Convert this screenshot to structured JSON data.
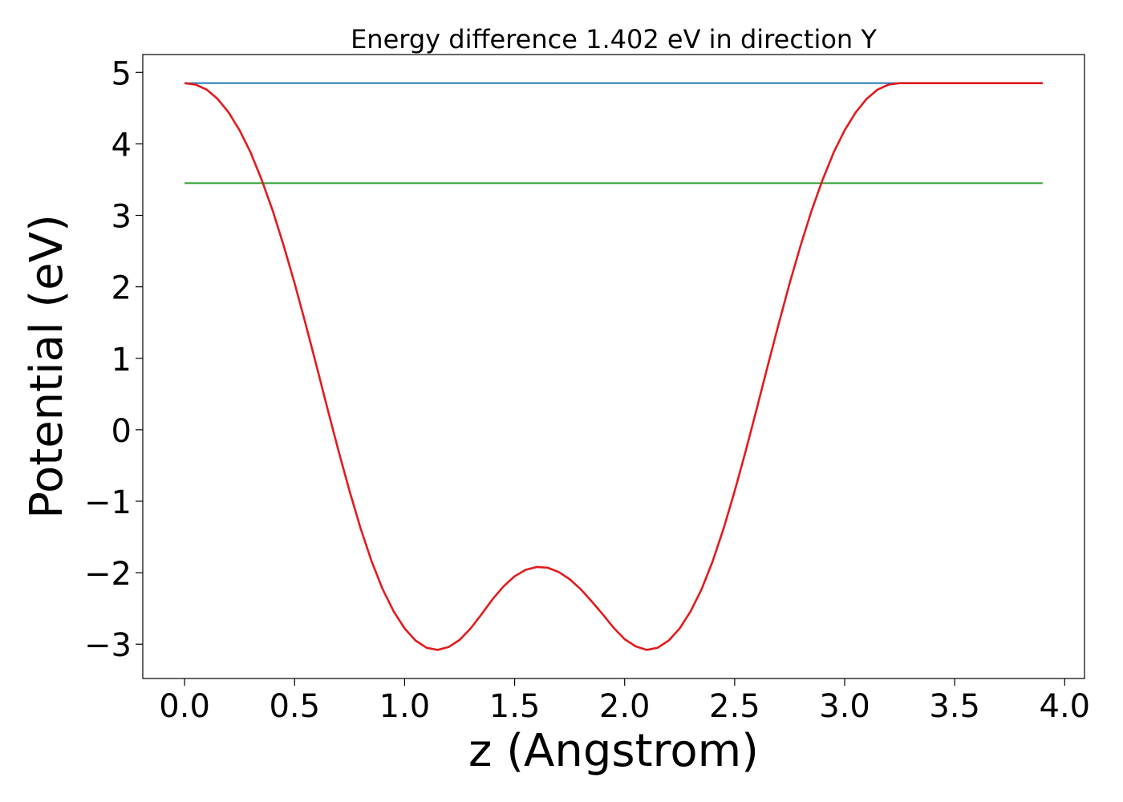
{
  "chart_data": {
    "type": "line",
    "title": "Energy difference 1.402 eV in direction Y",
    "xlabel": "z (Angstrom)",
    "ylabel": "Potential (eV)",
    "xlim": [
      -0.19,
      4.09
    ],
    "ylim": [
      -3.48,
      5.25
    ],
    "xticks": [
      0.0,
      0.5,
      1.0,
      1.5,
      2.0,
      2.5,
      3.0,
      3.5,
      4.0
    ],
    "xtick_labels": [
      "0.0",
      "0.5",
      "1.0",
      "1.5",
      "2.0",
      "2.5",
      "3.0",
      "3.5",
      "4.0"
    ],
    "yticks": [
      -3,
      -2,
      -1,
      0,
      1,
      2,
      3,
      4,
      5
    ],
    "ytick_labels": [
      "−3",
      "−2",
      "−1",
      "0",
      "1",
      "2",
      "3",
      "4",
      "5"
    ],
    "grid": false,
    "series": [
      {
        "color": "#e31a1c",
        "x": [
          0.0,
          0.05,
          0.1,
          0.15,
          0.2,
          0.25,
          0.3,
          0.35,
          0.4,
          0.45,
          0.5,
          0.55,
          0.6,
          0.65,
          0.7,
          0.75,
          0.8,
          0.85,
          0.9,
          0.95,
          1.0,
          1.05,
          1.1,
          1.15,
          1.2,
          1.25,
          1.3,
          1.35,
          1.4,
          1.45,
          1.5,
          1.55,
          1.6,
          1.65,
          1.7,
          1.75,
          1.8,
          1.85,
          1.9,
          1.95,
          2.0,
          2.05,
          2.1,
          2.15,
          2.2,
          2.25,
          2.3,
          2.35,
          2.4,
          2.45,
          2.5,
          2.55,
          2.6,
          2.65,
          2.7,
          2.75,
          2.8,
          2.85,
          2.9,
          2.95,
          3.0,
          3.05,
          3.1,
          3.15,
          3.2,
          3.25,
          3.3,
          3.35,
          3.4,
          3.45,
          3.5,
          3.55,
          3.6,
          3.65,
          3.7,
          3.75,
          3.8,
          3.85,
          3.9
        ],
        "y": [
          4.85,
          4.83,
          4.76,
          4.63,
          4.44,
          4.19,
          3.88,
          3.5,
          3.07,
          2.58,
          2.05,
          1.48,
          0.89,
          0.29,
          -0.3,
          -0.86,
          -1.38,
          -1.84,
          -2.23,
          -2.54,
          -2.78,
          -2.95,
          -3.05,
          -3.08,
          -3.04,
          -2.94,
          -2.78,
          -2.58,
          -2.37,
          -2.19,
          -2.05,
          -1.96,
          -1.92,
          -1.93,
          -1.99,
          -2.09,
          -2.23,
          -2.4,
          -2.58,
          -2.77,
          -2.93,
          -3.03,
          -3.08,
          -3.05,
          -2.95,
          -2.78,
          -2.54,
          -2.23,
          -1.84,
          -1.38,
          -0.86,
          -0.3,
          0.29,
          0.89,
          1.48,
          2.05,
          2.58,
          3.07,
          3.5,
          3.88,
          4.19,
          4.44,
          4.63,
          4.76,
          4.83,
          4.85,
          4.85,
          4.85,
          4.85,
          4.85,
          4.85,
          4.85,
          4.85,
          4.85,
          4.85,
          4.85,
          4.85,
          4.85,
          4.85
        ]
      },
      {
        "color": "#1f77b4",
        "x": [
          0.0,
          3.9
        ],
        "y": [
          4.85,
          4.85
        ]
      },
      {
        "color": "#2ca02c",
        "x": [
          0.0,
          3.9
        ],
        "y": [
          3.45,
          3.45
        ]
      }
    ]
  }
}
